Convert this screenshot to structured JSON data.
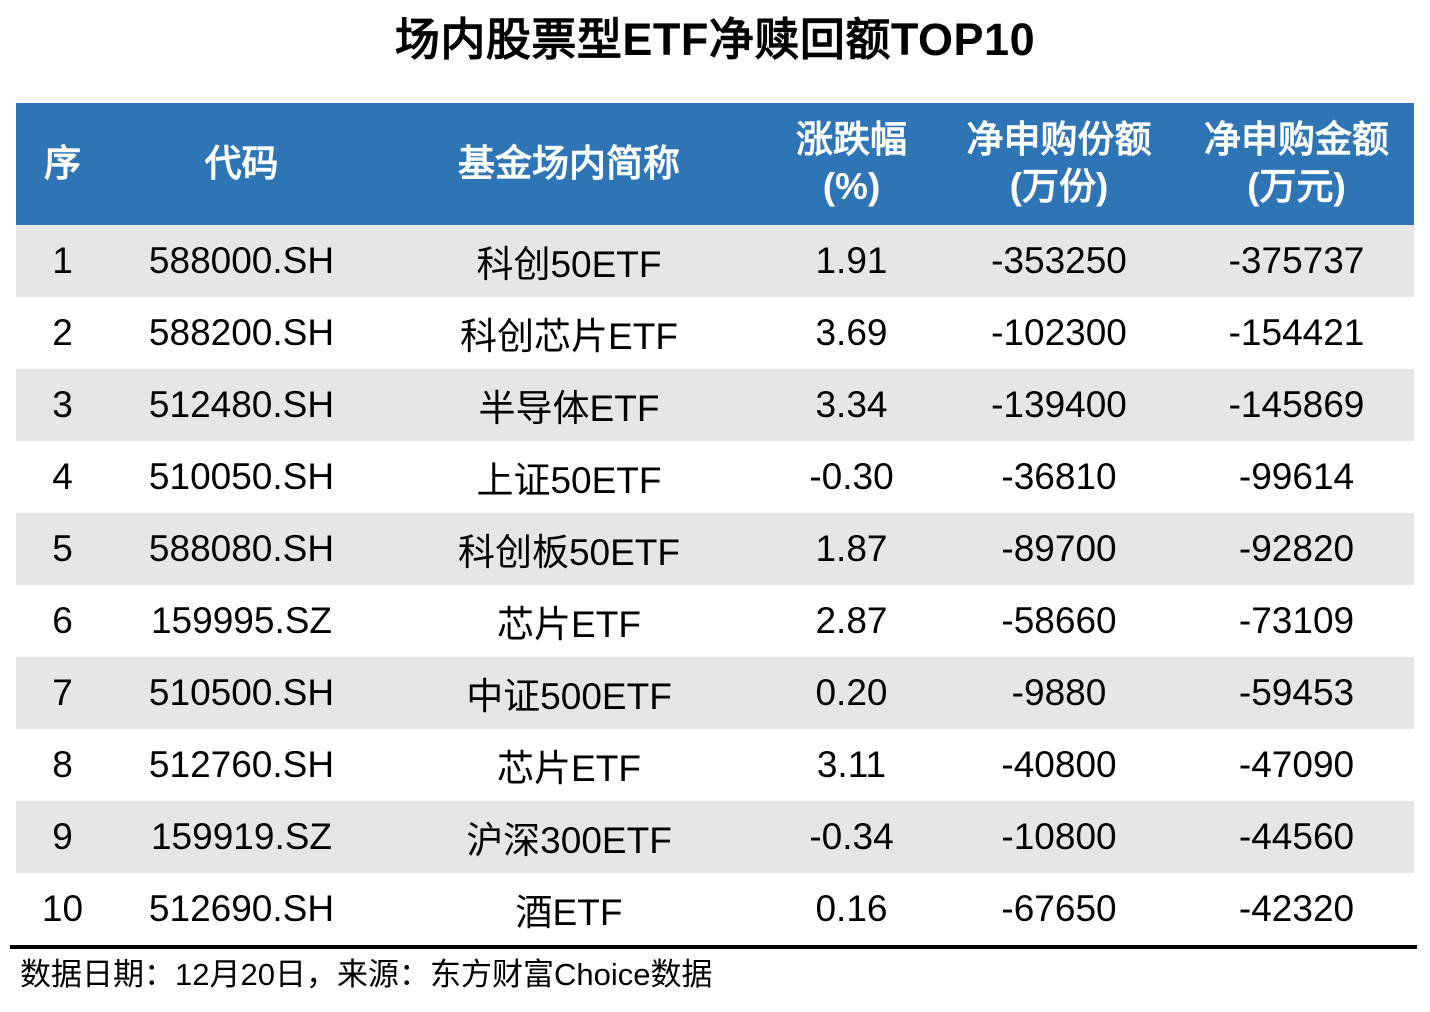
{
  "title": "场内股票型ETF净赎回额TOP10",
  "table": {
    "headers": [
      "序",
      "代码",
      "基金场内简称",
      "涨跌幅\n(%)",
      "净申购份额\n(万份)",
      "净申购金额\n(万元)"
    ],
    "rows": [
      [
        "1",
        "588000.SH",
        "科创50ETF",
        "1.91",
        "-353250",
        "-375737"
      ],
      [
        "2",
        "588200.SH",
        "科创芯片ETF",
        "3.69",
        "-102300",
        "-154421"
      ],
      [
        "3",
        "512480.SH",
        "半导体ETF",
        "3.34",
        "-139400",
        "-145869"
      ],
      [
        "4",
        "510050.SH",
        "上证50ETF",
        "-0.30",
        "-36810",
        "-99614"
      ],
      [
        "5",
        "588080.SH",
        "科创板50ETF",
        "1.87",
        "-89700",
        "-92820"
      ],
      [
        "6",
        "159995.SZ",
        "芯片ETF",
        "2.87",
        "-58660",
        "-73109"
      ],
      [
        "7",
        "510500.SH",
        "中证500ETF",
        "0.20",
        "-9880",
        "-59453"
      ],
      [
        "8",
        "512760.SH",
        "芯片ETF",
        "3.11",
        "-40800",
        "-47090"
      ],
      [
        "9",
        "159919.SZ",
        "沪深300ETF",
        "-0.34",
        "-10800",
        "-44560"
      ],
      [
        "10",
        "512690.SH",
        "酒ETF",
        "0.16",
        "-67650",
        "-42320"
      ]
    ]
  },
  "footer": {
    "note": "数据日期：12月20日，来源：东方财富Choice数据"
  },
  "colors": {
    "header_bg": "#2E75B6",
    "header_text": "#FFFFFF",
    "row_alt_bg": "#E6E6E6",
    "row_bg": "#FFFFFF",
    "text": "#000000",
    "divider": "#000000"
  },
  "chart_data": {
    "type": "table",
    "title": "场内股票型ETF净赎回额TOP10",
    "columns": [
      "序",
      "代码",
      "基金场内简称",
      "涨跌幅(%)",
      "净申购份额(万份)",
      "净申购金额(万元)"
    ],
    "rows": [
      [
        1,
        "588000.SH",
        "科创50ETF",
        1.91,
        -353250,
        -375737
      ],
      [
        2,
        "588200.SH",
        "科创芯片ETF",
        3.69,
        -102300,
        -154421
      ],
      [
        3,
        "512480.SH",
        "半导体ETF",
        3.34,
        -139400,
        -145869
      ],
      [
        4,
        "510050.SH",
        "上证50ETF",
        -0.3,
        -36810,
        -99614
      ],
      [
        5,
        "588080.SH",
        "科创板50ETF",
        1.87,
        -89700,
        -92820
      ],
      [
        6,
        "159995.SZ",
        "芯片ETF",
        2.87,
        -58660,
        -73109
      ],
      [
        7,
        "510500.SH",
        "中证500ETF",
        0.2,
        -9880,
        -59453
      ],
      [
        8,
        "512760.SH",
        "芯片ETF",
        3.11,
        -40800,
        -47090
      ],
      [
        9,
        "159919.SZ",
        "沪深300ETF",
        -0.34,
        -10800,
        -44560
      ],
      [
        10,
        "512690.SH",
        "酒ETF",
        0.16,
        -67650,
        -42320
      ]
    ],
    "source_note": "数据日期：12月20日，来源：东方财富Choice数据"
  }
}
